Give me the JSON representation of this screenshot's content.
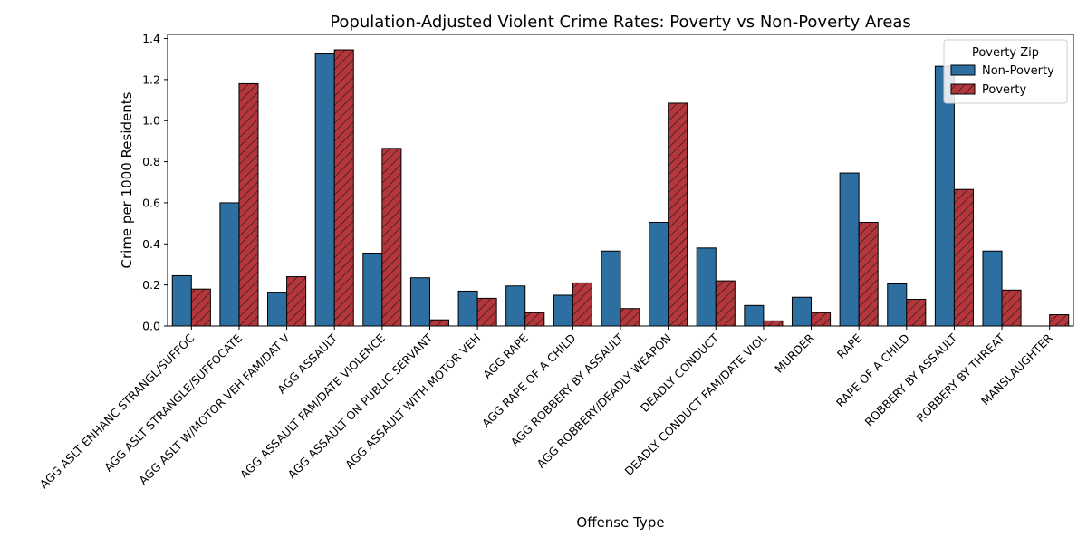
{
  "chart_data": {
    "type": "bar",
    "title": "Population-Adjusted Violent Crime Rates: Poverty vs Non-Poverty Areas",
    "xlabel": "Offense Type",
    "ylabel": "Crime per 1000 Residents",
    "ylim": [
      0,
      1.42
    ],
    "yticks": [
      "0.0",
      "0.2",
      "0.4",
      "0.6",
      "0.8",
      "1.0",
      "1.2",
      "1.4"
    ],
    "ytick_values": [
      0,
      0.2,
      0.4,
      0.6,
      0.8,
      1.0,
      1.2,
      1.4
    ],
    "grid": false,
    "legend": {
      "title": "Poverty Zip",
      "position": "top-right"
    },
    "categories": [
      "AGG ASLT ENHANC STRANGL/SUFFOC",
      "AGG ASLT STRANGLE/SUFFOCATE",
      "AGG ASLT W/MOTOR VEH FAM/DAT V",
      "AGG ASSAULT",
      "AGG ASSAULT FAM/DATE VIOLENCE",
      "AGG ASSAULT ON PUBLIC SERVANT",
      "AGG ASSAULT WITH MOTOR VEH",
      "AGG RAPE",
      "AGG RAPE OF A CHILD",
      "AGG ROBBERY BY ASSAULT",
      "AGG ROBBERY/DEADLY WEAPON",
      "DEADLY CONDUCT",
      "DEADLY CONDUCT FAM/DATE VIOL",
      "MURDER",
      "RAPE",
      "RAPE OF A CHILD",
      "ROBBERY BY ASSAULT",
      "ROBBERY BY THREAT",
      "MANSLAUGHTER"
    ],
    "series": [
      {
        "name": "Non-Poverty",
        "color": "#2e6fa2",
        "hatch": false,
        "values": [
          0.245,
          0.6,
          0.165,
          1.325,
          0.355,
          0.235,
          0.17,
          0.195,
          0.15,
          0.365,
          0.505,
          0.38,
          0.1,
          0.14,
          0.745,
          0.205,
          1.265,
          0.365,
          0.0
        ]
      },
      {
        "name": "Poverty",
        "color": "#b5373b",
        "hatch": true,
        "values": [
          0.18,
          1.18,
          0.24,
          1.345,
          0.865,
          0.03,
          0.135,
          0.065,
          0.21,
          0.085,
          1.085,
          0.22,
          0.025,
          0.065,
          0.505,
          0.13,
          0.665,
          0.175,
          0.055
        ]
      }
    ]
  }
}
